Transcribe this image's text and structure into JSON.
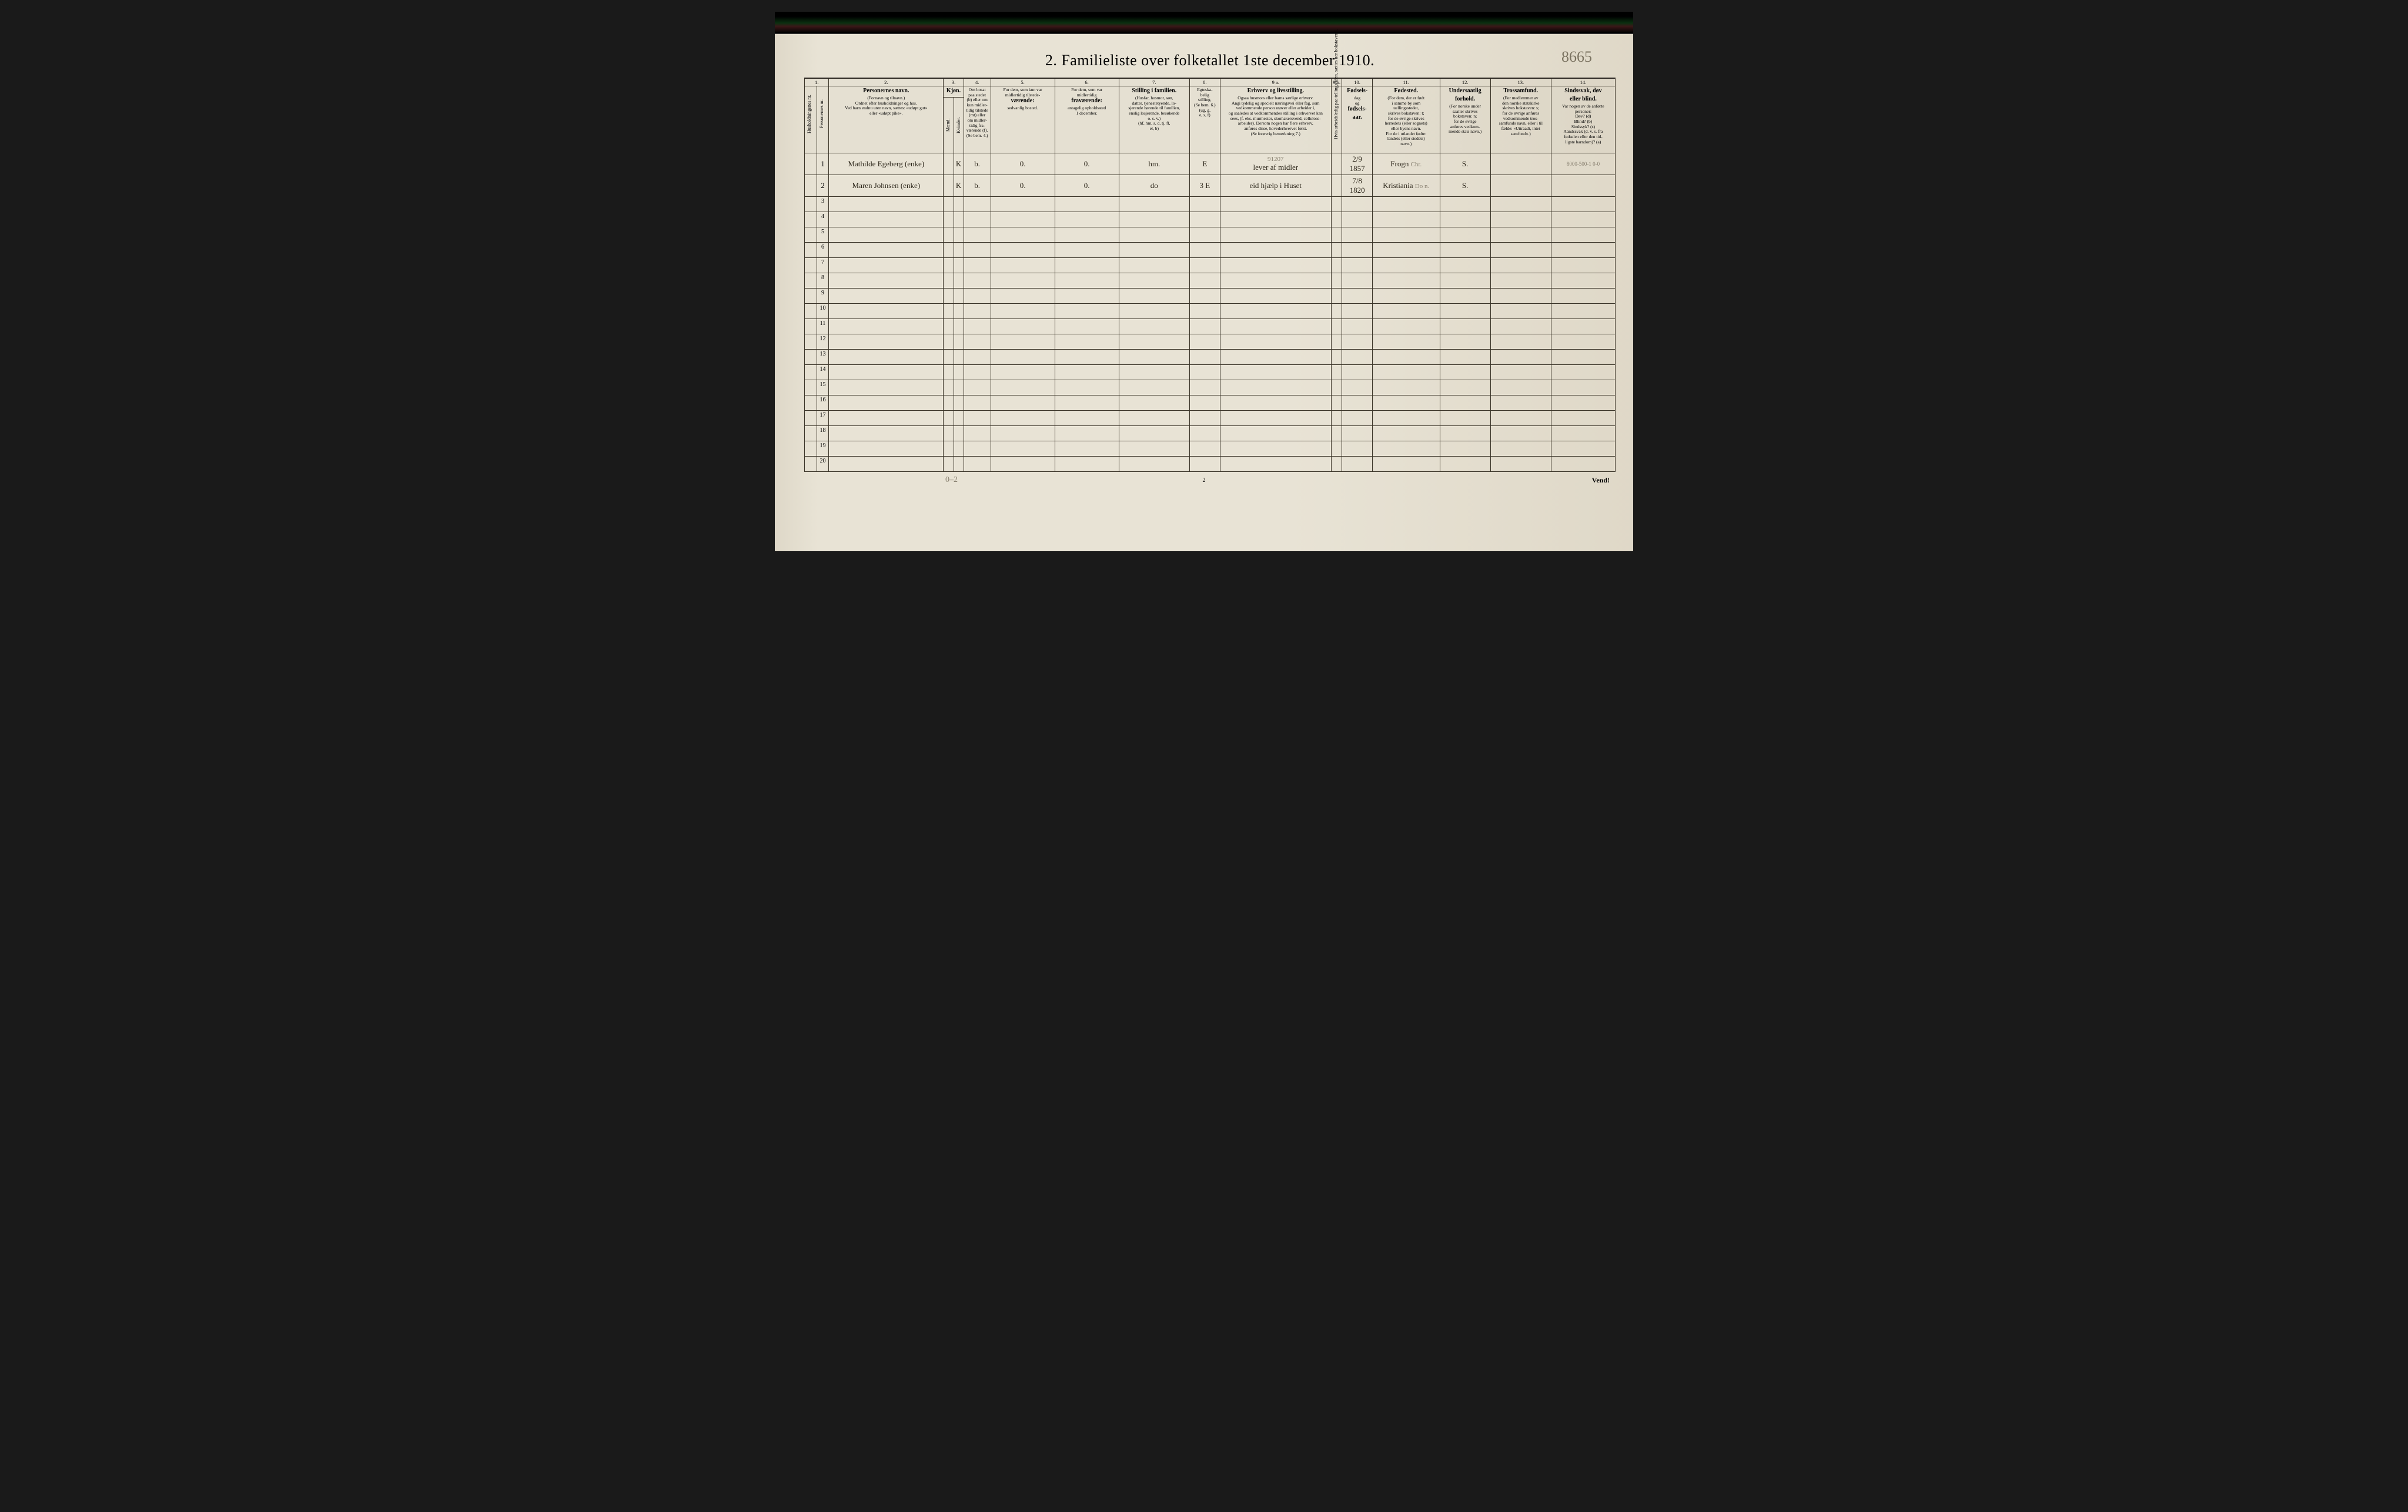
{
  "document": {
    "title": "2.  Familieliste over folketallet 1ste december 1910.",
    "top_right_annotation": "8665",
    "page_number_bottom": "2",
    "vend_label": "Vend!",
    "bottom_pencil_note": "0–2",
    "paper_bg": "#e8e3d5",
    "ink_color": "#2a2520",
    "border_color": "#3a3428"
  },
  "columns": {
    "numbers": [
      "1.",
      "2.",
      "3.",
      "4.",
      "5.",
      "6.",
      "7.",
      "8.",
      "9 a.",
      "9 b.",
      "10.",
      "11.",
      "12.",
      "13.",
      "14."
    ],
    "col1_vert_a": "Husholdningenes nr.",
    "col1_vert_b": "Personernes nr.",
    "col2": {
      "strong": "Personernes navn.",
      "sub1": "(Fornavn og tilnavn.)",
      "sub2": "Ordnet efter husholdninger og hus.",
      "sub3": "Ved barn endnu uten navn, sættes: «udøpt gut»",
      "sub4": "eller «udøpt pike»."
    },
    "col3": {
      "strong": "Kjøn.",
      "m": "Mænd.",
      "k": "Kvinder.",
      "foot": "m.  k."
    },
    "col4": {
      "l1": "Om bosat",
      "l2": "paa stedet",
      "l3": "(b) eller om",
      "l4": "kun midler-",
      "l5": "tidig tilstede",
      "l6": "(mt) eller",
      "l7": "om midler-",
      "l8": "tidig fra-",
      "l9": "værende (f).",
      "l10": "(Se bem. 4.)"
    },
    "col5": {
      "l1": "For dem, som kun var",
      "l2": "midlertidig tilstede-",
      "l3": "værende:",
      "l4": "sedvanlig bosted."
    },
    "col6": {
      "l1": "For dem, som var",
      "l2": "midlertidig",
      "l3": "fraværende:",
      "l4": "antagelig opholdssted",
      "l5": "1 december."
    },
    "col7": {
      "strong": "Stilling i familien.",
      "l1": "(Husfar, husmor, søn,",
      "l2": "datter, tjenestetyende, lo-",
      "l3": "sjerende hørende til familien,",
      "l4": "enslig losjerende, besøkende",
      "l5": "o. s. v.)",
      "l6": "(hf, hm, s, d, tj, fl,",
      "l7": "el, b)"
    },
    "col8": {
      "l1": "Egteska-",
      "l2": "belig",
      "l3": "stilling.",
      "l4": "(Se bem. 6.)",
      "l5": "(ug, g,",
      "l6": "e, s, f)"
    },
    "col9a": {
      "strong": "Erhverv og livsstilling.",
      "l1": "(For medlemmer av familien — husfader, søn, datter",
      "l2": "Ogsaa husmors eller barns særlige erhverv.",
      "l3": "Angi tydelig og specielt næringsvei eller fag, som",
      "l4": "vedkommende person utøver eller arbeider i,",
      "l5": "og saaledes at vedkommendes stilling i erhvervet kan",
      "l6": "sees, (f. eks. murmester, skomakersvend, cellulose-",
      "l7": "arbeider). Dersom nogen har flere erhverv,",
      "l8": "anføres disse, hovederhvervet først.",
      "l9": "(Se forøvrig bemerkning 7.)"
    },
    "col9b_vert": "Hvis arbeidsledig paa tellingstiden, sættes her bokstaven l.",
    "col10": {
      "strong": "Fødsels-",
      "l1": "dag",
      "l2": "og",
      "l3": "fødsels-",
      "l4": "aar."
    },
    "col11": {
      "strong": "Fødested.",
      "l1": "(For dem, der er født",
      "l2": "i samme by som",
      "l3": "tællingsstedet,",
      "l4": "skrives bokstaven: t;",
      "l5": "for de øvrige skrives",
      "l6": "herredets (eller sognets)",
      "l7": "eller byens navn.",
      "l8": "For de i utlandet fødte:",
      "l9": "landets (eller stedets)",
      "l10": "navn.)"
    },
    "col12": {
      "strong": "Undersaatlig",
      "strong2": "forhold.",
      "l1": "(For norske under",
      "l2": "saatter skrives",
      "l3": "bokstaven: n;",
      "l4": "for de øvrige",
      "l5": "anføres vedkom-",
      "l6": "mende stats navn.)"
    },
    "col13": {
      "strong": "Trossamfund.",
      "l1": "(For medlemmer av",
      "l2": "den norske statskirke",
      "l3": "skrives bokstaven: s;",
      "l4": "for de øvrige anføres",
      "l5": "vedkommende tros-",
      "l6": "samfunds navn, eller i til",
      "l7": "fælde: «Uttraadt, intet",
      "l8": "samfund».)"
    },
    "col14": {
      "strong": "Sindssvak, døv",
      "strong2": "eller blind.",
      "l1": "Var nogen av de anførte",
      "l2": "personer:",
      "l3": "Døv?        (d)",
      "l4": "Blind?       (b)",
      "l5": "Sindssyk?  (s)",
      "l6": "Aandssvak (d. v. s. fra",
      "l7": "fødselen eller den tid-",
      "l8": "ligste barndom)?  (a)"
    }
  },
  "rows": [
    {
      "hh": "",
      "pn": "1",
      "name": "Mathilde Egeberg (enke)",
      "m": "",
      "k": "K",
      "bosat": "b.",
      "col5": "0.",
      "col6": "0.",
      "col7": "hm.",
      "col8": "E",
      "col9a": "lever af midler",
      "col9a_pencil": "91207",
      "col9b": "",
      "col10": "2/9 1857",
      "col11": "Frogn",
      "col11_extra": "Chr.",
      "col12": "S.",
      "col13": "",
      "col14": "8000-500-1   0-0"
    },
    {
      "hh": "",
      "pn": "2",
      "name": "Maren Johnsen (enke)",
      "m": "",
      "k": "K",
      "bosat": "b.",
      "col5": "0.",
      "col6": "0.",
      "col7": "do",
      "col8": "3 E",
      "col9a": "eid hjælp i Huset",
      "col9b": "",
      "col10": "7/8 1820",
      "col11": "Kristiania",
      "col11_extra": "Do n.",
      "col12": "S.",
      "col13": "",
      "col14": ""
    }
  ],
  "empty_row_numbers": [
    "3",
    "4",
    "5",
    "6",
    "7",
    "8",
    "9",
    "10",
    "11",
    "12",
    "13",
    "14",
    "15",
    "16",
    "17",
    "18",
    "19",
    "20"
  ]
}
